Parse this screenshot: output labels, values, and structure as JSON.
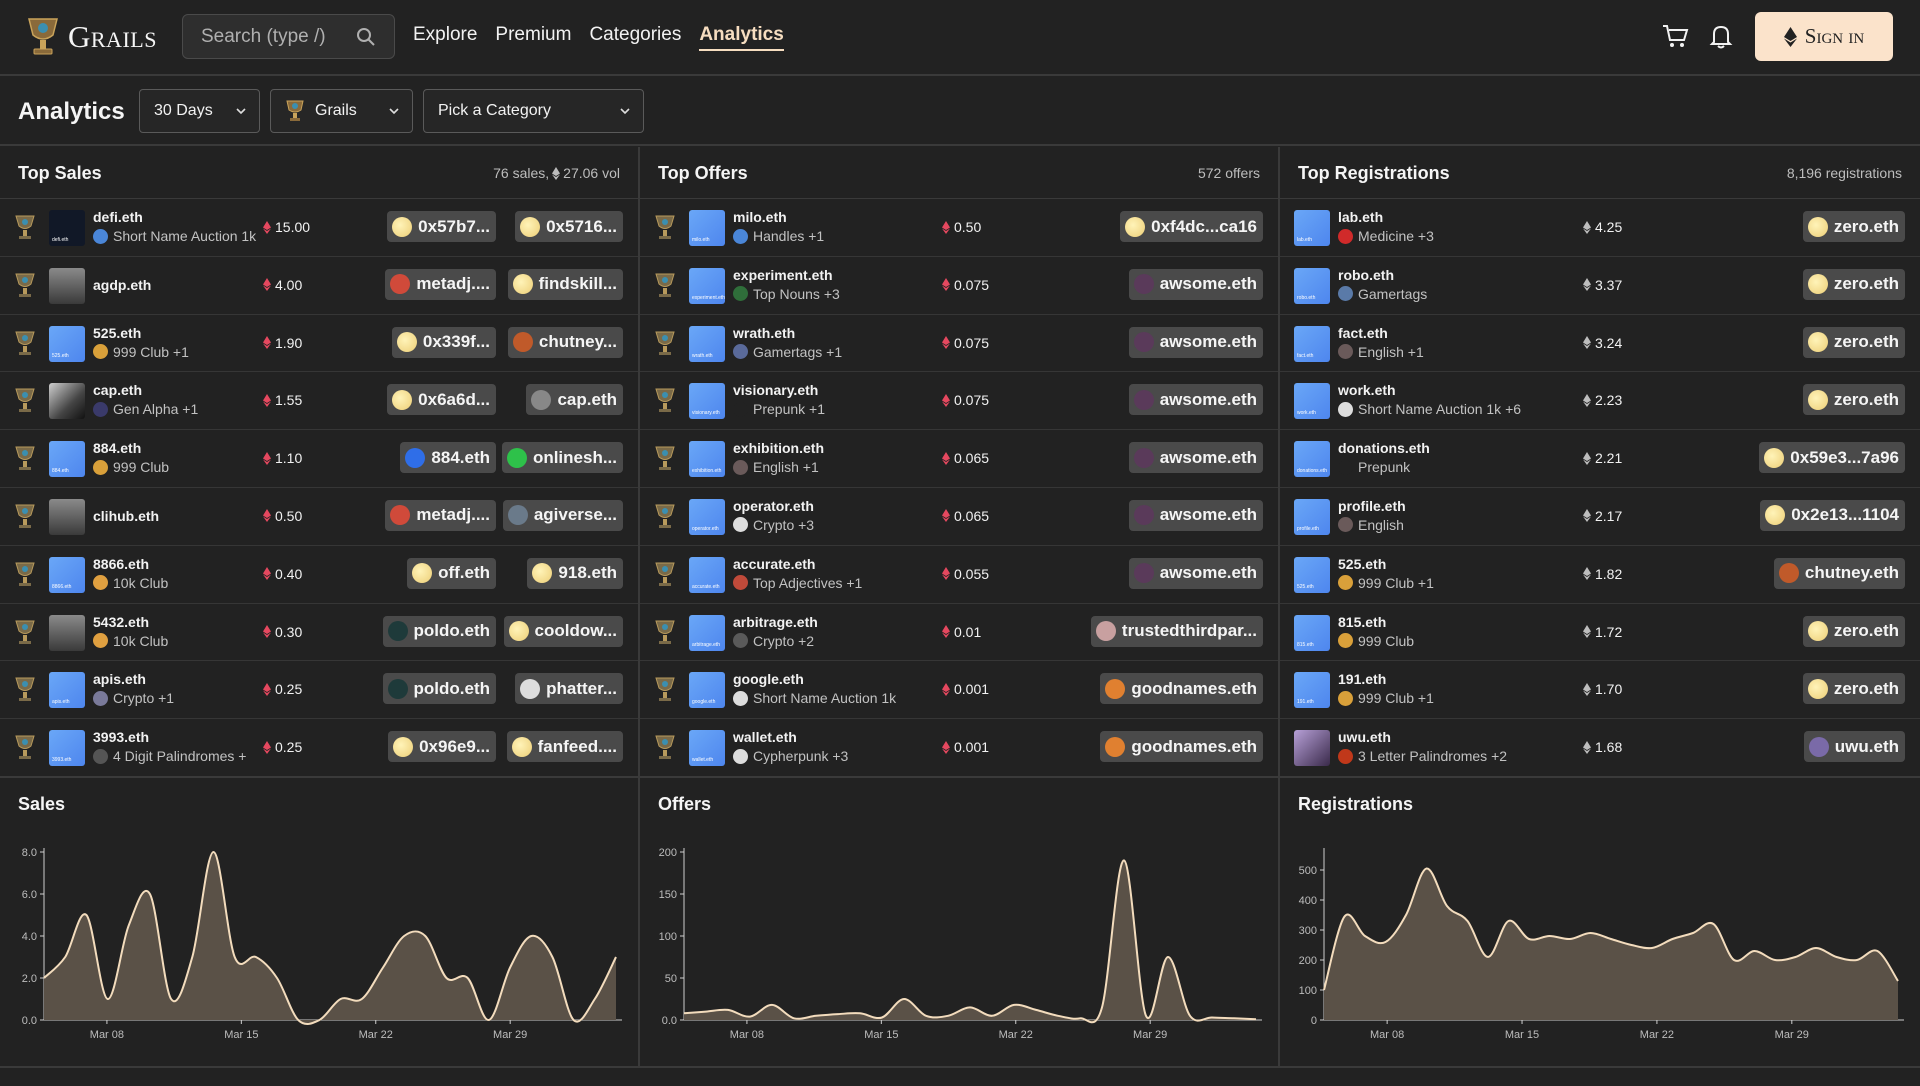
{
  "header": {
    "brand": "Grails",
    "search_placeholder": "Search (type /)",
    "nav": [
      "Explore",
      "Premium",
      "Categories",
      "Analytics"
    ],
    "active_nav": "Analytics",
    "signin_label": "Sign in"
  },
  "filters": {
    "title": "Analytics",
    "period": "30 Days",
    "source": "Grails",
    "category_placeholder": "Pick a Category"
  },
  "top_sales": {
    "title": "Top Sales",
    "meta_count": "76 sales,",
    "meta_vol": "27.06 vol",
    "rows": [
      {
        "name": "defi.eth",
        "sub": "Short Name Auction 1k",
        "price": "15.00",
        "from": "0x57b7...",
        "to": "0x5716...",
        "thumb": "defi.eth"
      },
      {
        "name": "agdp.eth",
        "sub": "",
        "price": "4.00",
        "from": "metadj....",
        "to": "findskill...",
        "thumb": ""
      },
      {
        "name": "525.eth",
        "sub": "999 Club  +1",
        "price": "1.90",
        "from": "0x339f...",
        "to": "chutney...",
        "thumb": "525.eth"
      },
      {
        "name": "cap.eth",
        "sub": "Gen Alpha  +1",
        "price": "1.55",
        "from": "0x6a6d...",
        "to": "cap.eth",
        "thumb": ""
      },
      {
        "name": "884.eth",
        "sub": "999 Club",
        "price": "1.10",
        "from": "884.eth",
        "to": "onlinesh...",
        "thumb": "884.eth"
      },
      {
        "name": "clihub.eth",
        "sub": "",
        "price": "0.50",
        "from": "metadj....",
        "to": "agiverse...",
        "thumb": ""
      },
      {
        "name": "8866.eth",
        "sub": "10k Club",
        "price": "0.40",
        "from": "off.eth",
        "to": "918.eth",
        "thumb": "8866.eth"
      },
      {
        "name": "5432.eth",
        "sub": "10k Club",
        "price": "0.30",
        "from": "poldo.eth",
        "to": "cooldow...",
        "thumb": ""
      },
      {
        "name": "apis.eth",
        "sub": "Crypto  +1",
        "price": "0.25",
        "from": "poldo.eth",
        "to": "phatter...",
        "thumb": "apis.eth"
      },
      {
        "name": "3993.eth",
        "sub": "4 Digit Palindromes  +",
        "price": "0.25",
        "from": "0x96e9...",
        "to": "fanfeed....",
        "thumb": "3993.eth"
      }
    ]
  },
  "top_offers": {
    "title": "Top Offers",
    "meta": "572 offers",
    "rows": [
      {
        "name": "milo.eth",
        "sub": "Handles  +1",
        "price": "0.50",
        "bidder": "0xf4dc...ca16"
      },
      {
        "name": "experiment.eth",
        "sub": "Top Nouns  +3",
        "price": "0.075",
        "bidder": "awsome.eth"
      },
      {
        "name": "wrath.eth",
        "sub": "Gamertags  +1",
        "price": "0.075",
        "bidder": "awsome.eth"
      },
      {
        "name": "visionary.eth",
        "sub": "Prepunk  +1",
        "price": "0.075",
        "bidder": "awsome.eth"
      },
      {
        "name": "exhibition.eth",
        "sub": "English  +1",
        "price": "0.065",
        "bidder": "awsome.eth"
      },
      {
        "name": "operator.eth",
        "sub": "Crypto  +3",
        "price": "0.065",
        "bidder": "awsome.eth"
      },
      {
        "name": "accurate.eth",
        "sub": "Top Adjectives  +1",
        "price": "0.055",
        "bidder": "awsome.eth"
      },
      {
        "name": "arbitrage.eth",
        "sub": "Crypto  +2",
        "price": "0.01",
        "bidder": "trustedthirdpar..."
      },
      {
        "name": "google.eth",
        "sub": "Short Name Auction 1k",
        "price": "0.001",
        "bidder": "goodnames.eth"
      },
      {
        "name": "wallet.eth",
        "sub": "Cypherpunk  +3",
        "price": "0.001",
        "bidder": "goodnames.eth"
      }
    ]
  },
  "top_registrations": {
    "title": "Top Registrations",
    "meta": "8,196 registrations",
    "rows": [
      {
        "name": "lab.eth",
        "sub": "Medicine  +3",
        "price": "4.25",
        "owner": "zero.eth"
      },
      {
        "name": "robo.eth",
        "sub": "Gamertags",
        "price": "3.37",
        "owner": "zero.eth"
      },
      {
        "name": "fact.eth",
        "sub": "English  +1",
        "price": "3.24",
        "owner": "zero.eth"
      },
      {
        "name": "work.eth",
        "sub": "Short Name Auction 1k  +6",
        "price": "2.23",
        "owner": "zero.eth"
      },
      {
        "name": "donations.eth",
        "sub": "Prepunk",
        "price": "2.21",
        "owner": "0x59e3...7a96"
      },
      {
        "name": "profile.eth",
        "sub": "English",
        "price": "2.17",
        "owner": "0x2e13...1104"
      },
      {
        "name": "525.eth",
        "sub": "999 Club  +1",
        "price": "1.82",
        "owner": "chutney.eth"
      },
      {
        "name": "815.eth",
        "sub": "999 Club",
        "price": "1.72",
        "owner": "zero.eth"
      },
      {
        "name": "191.eth",
        "sub": "999 Club  +1",
        "price": "1.70",
        "owner": "zero.eth"
      },
      {
        "name": "uwu.eth",
        "sub": "3 Letter Palindromes  +2",
        "price": "1.68",
        "owner": "uwu.eth"
      }
    ]
  },
  "colors": {
    "accent": "#f6ddc0",
    "bg": "#222222",
    "eth_red": "#e5485f",
    "chart_fill": "#5a5147"
  },
  "chart_data": [
    {
      "type": "area",
      "title": "Sales",
      "x_ticks": [
        "Mar 08",
        "Mar 15",
        "Mar 22",
        "Mar 29"
      ],
      "y_ticks": [
        "0.0",
        "2.0",
        "4.0",
        "6.0",
        "8.0"
      ],
      "ylim": [
        0,
        8
      ],
      "values": [
        2.0,
        3.0,
        5.0,
        1.0,
        4.5,
        6.0,
        1.0,
        3.0,
        8.0,
        3.0,
        3.0,
        2.0,
        0.0,
        0.0,
        1.0,
        1.0,
        2.5,
        4.0,
        4.0,
        2.0,
        2.0,
        0.0,
        2.5,
        4.0,
        3.0,
        0.0,
        1.0,
        3.0
      ]
    },
    {
      "type": "area",
      "title": "Offers",
      "x_ticks": [
        "Mar 08",
        "Mar 15",
        "Mar 22",
        "Mar 29"
      ],
      "y_ticks": [
        "0.0",
        "50",
        "100",
        "150",
        "200"
      ],
      "ylim": [
        0,
        200
      ],
      "values": [
        8,
        10,
        12,
        4,
        18,
        2,
        5,
        7,
        8,
        3,
        25,
        5,
        5,
        15,
        5,
        18,
        12,
        5,
        2,
        15,
        190,
        5,
        75,
        5,
        3,
        2,
        1
      ]
    },
    {
      "type": "area",
      "title": "Registrations",
      "x_ticks": [
        "Mar 08",
        "Mar 15",
        "Mar 22",
        "Mar 29"
      ],
      "y_ticks": [
        "0",
        "100",
        "200",
        "300",
        "400",
        "500"
      ],
      "ylim": [
        0,
        560
      ],
      "values": [
        100,
        345,
        280,
        260,
        350,
        505,
        380,
        330,
        210,
        330,
        270,
        280,
        270,
        290,
        270,
        250,
        240,
        270,
        290,
        320,
        200,
        230,
        200,
        210,
        240,
        210,
        200,
        230,
        130
      ]
    }
  ]
}
